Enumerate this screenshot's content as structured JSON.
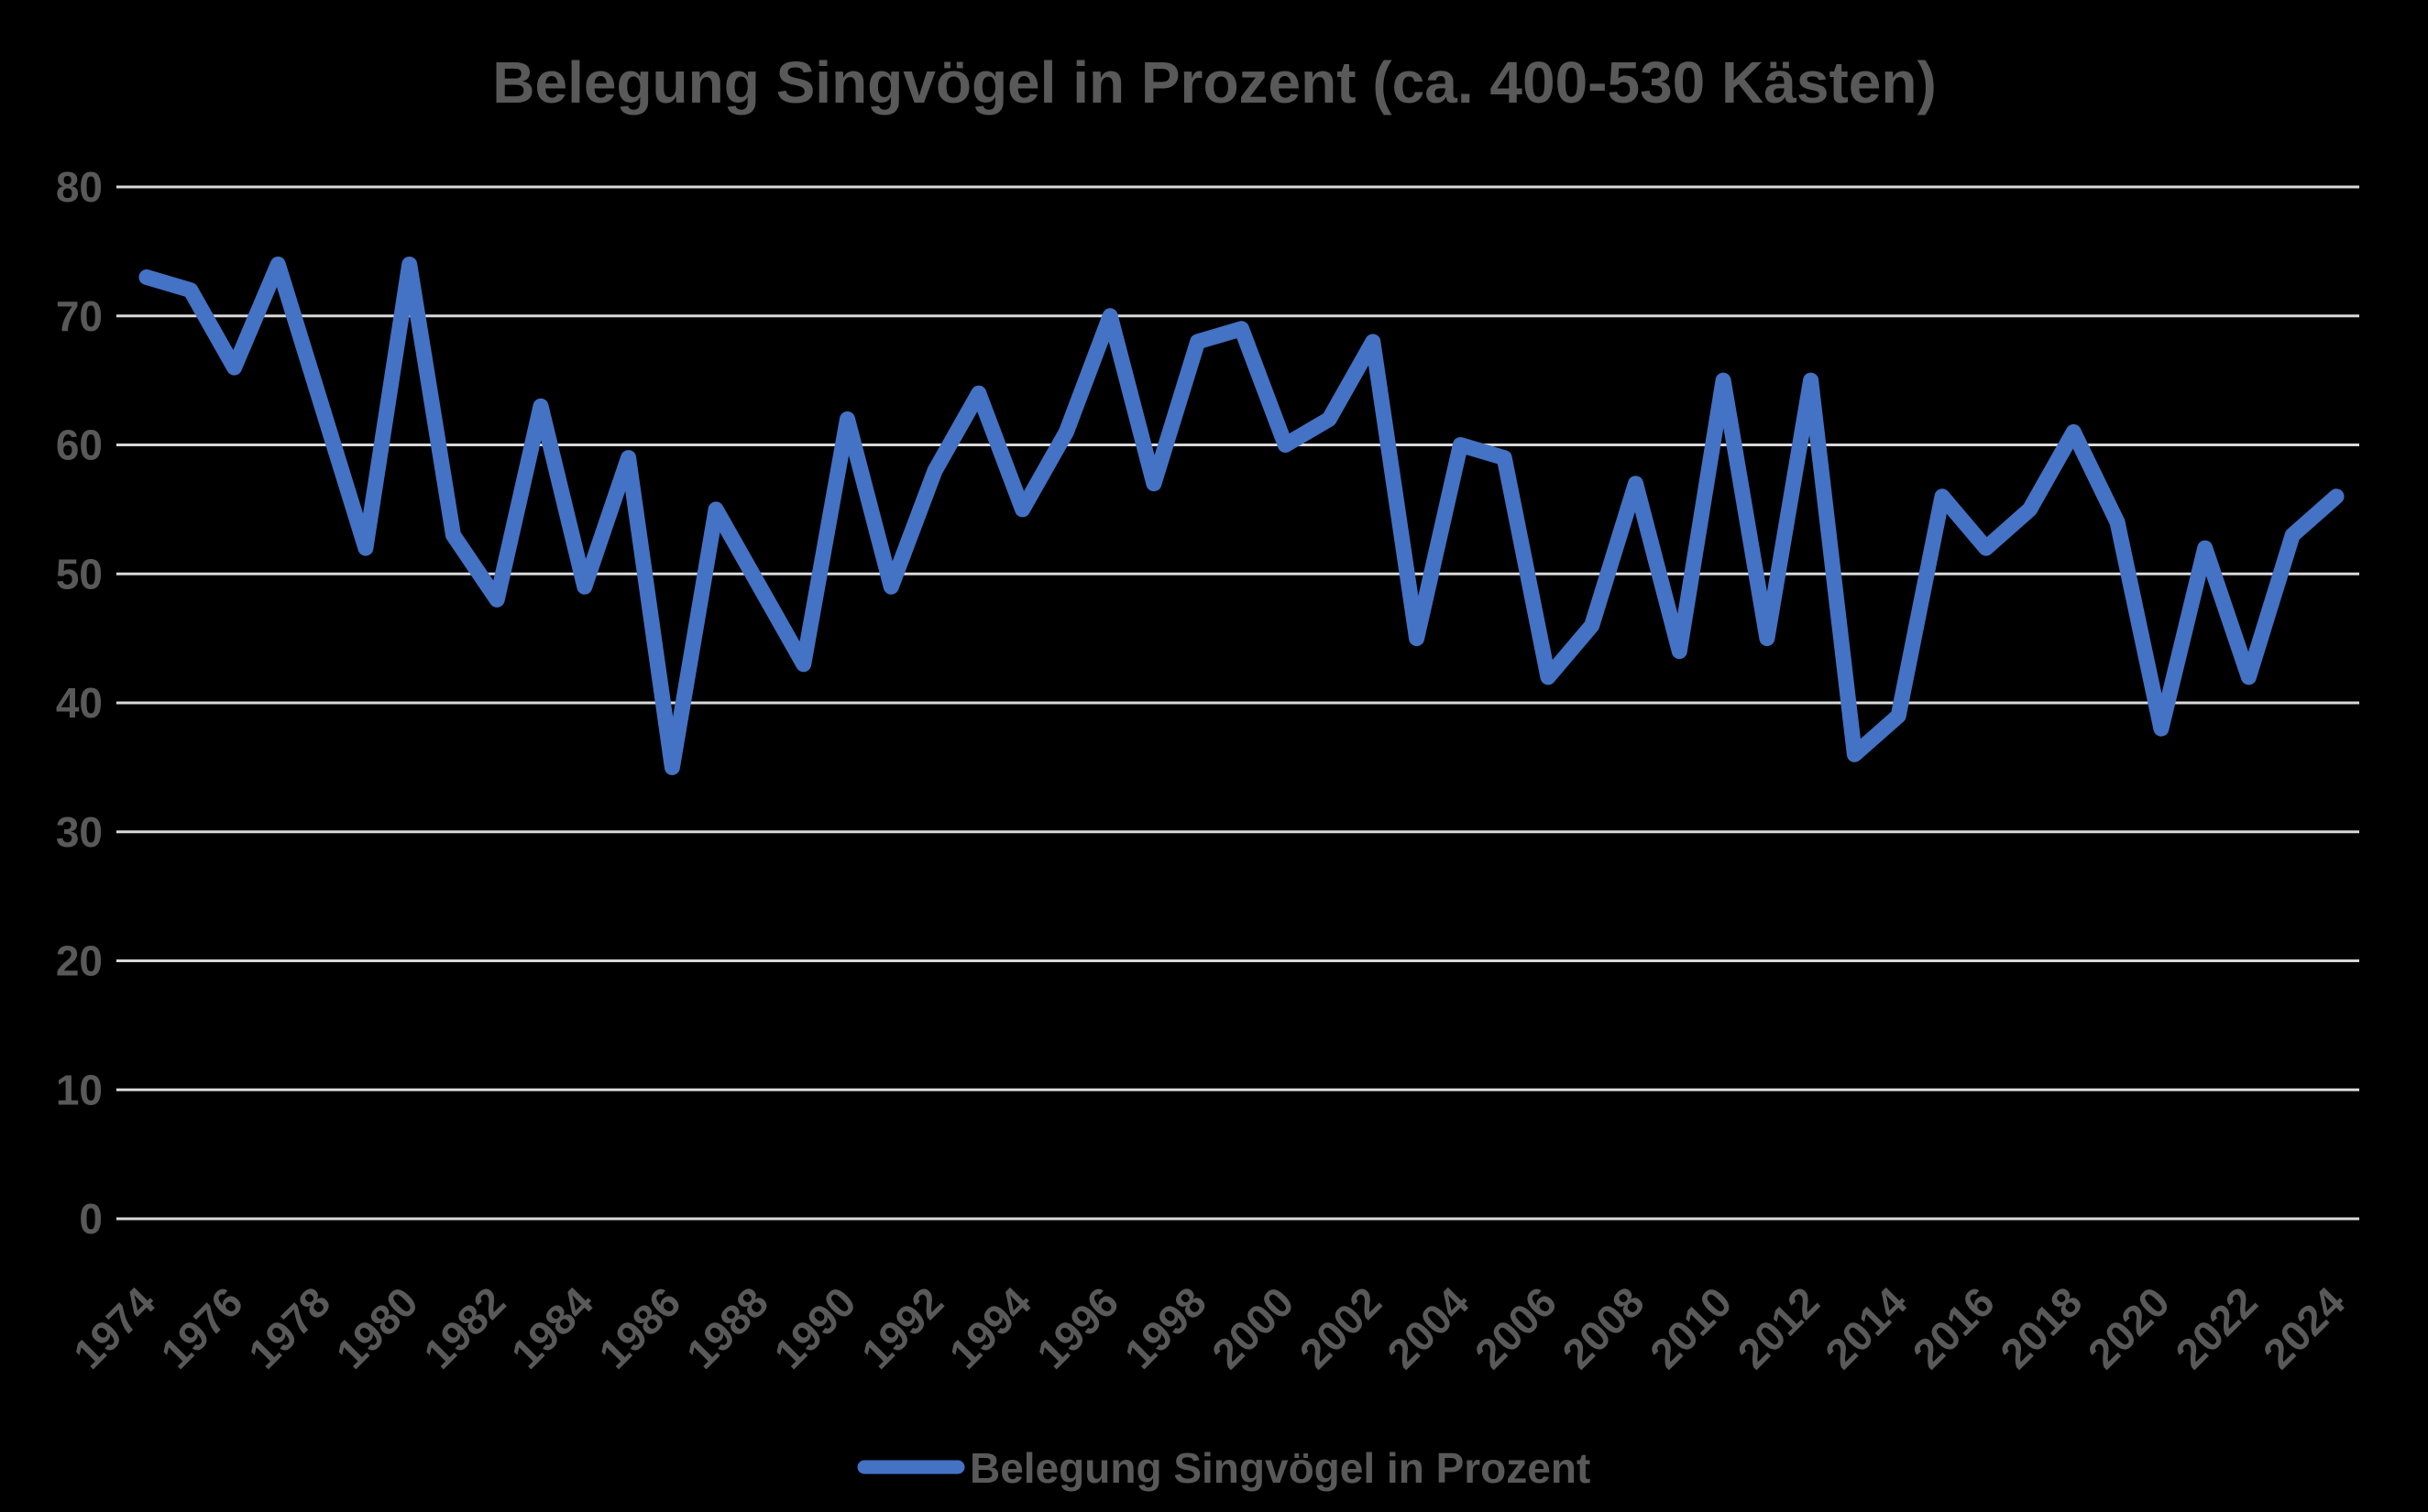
{
  "chart": {
    "title": "Belegung Singvögel in Prozent (ca. 400-530  Kästen)",
    "background_color": "#000000",
    "text_color": "#595959",
    "gridline_color": "#d9d9d9",
    "line_color": "#4472c4"
  },
  "legend": {
    "label": "Belegung Singvögel in Prozent"
  },
  "chart_data": {
    "type": "line",
    "title": "Belegung Singvögel in Prozent (ca. 400-530  Kästen)",
    "xlabel": "",
    "ylabel": "",
    "ylim": [
      0,
      80
    ],
    "ytick_step": 10,
    "grid": true,
    "legend_position": "bottom",
    "x": [
      1974,
      1975,
      1976,
      1977,
      1978,
      1979,
      1980,
      1981,
      1982,
      1983,
      1984,
      1985,
      1986,
      1987,
      1988,
      1989,
      1990,
      1991,
      1992,
      1993,
      1994,
      1995,
      1996,
      1997,
      1998,
      1999,
      2000,
      2001,
      2002,
      2003,
      2004,
      2005,
      2006,
      2007,
      2008,
      2009,
      2010,
      2011,
      2012,
      2013,
      2014,
      2015,
      2016,
      2017,
      2018,
      2019,
      2020,
      2021,
      2022,
      2023,
      2024
    ],
    "xtick_labels": [
      "1974",
      "1976",
      "1978",
      "1980",
      "1982",
      "1984",
      "1986",
      "1988",
      "1990",
      "1992",
      "1994",
      "1996",
      "1998",
      "2000",
      "2002",
      "2004",
      "2006",
      "2008",
      "2010",
      "2012",
      "2014",
      "2016",
      "2018",
      "2020",
      "2022",
      "2024"
    ],
    "series": [
      {
        "name": "Belegung Singvögel in Prozent",
        "values": [
          73,
          72,
          66,
          74,
          63,
          52,
          74,
          53,
          48,
          63,
          49,
          59,
          35,
          55,
          49,
          43,
          62,
          49,
          58,
          64,
          55,
          61,
          70,
          57,
          68,
          69,
          60,
          62,
          68,
          45,
          60,
          59,
          42,
          46,
          57,
          44,
          65,
          45,
          65,
          36,
          39,
          56,
          52,
          55,
          61,
          54,
          38,
          52,
          42,
          53,
          56
        ]
      }
    ]
  }
}
